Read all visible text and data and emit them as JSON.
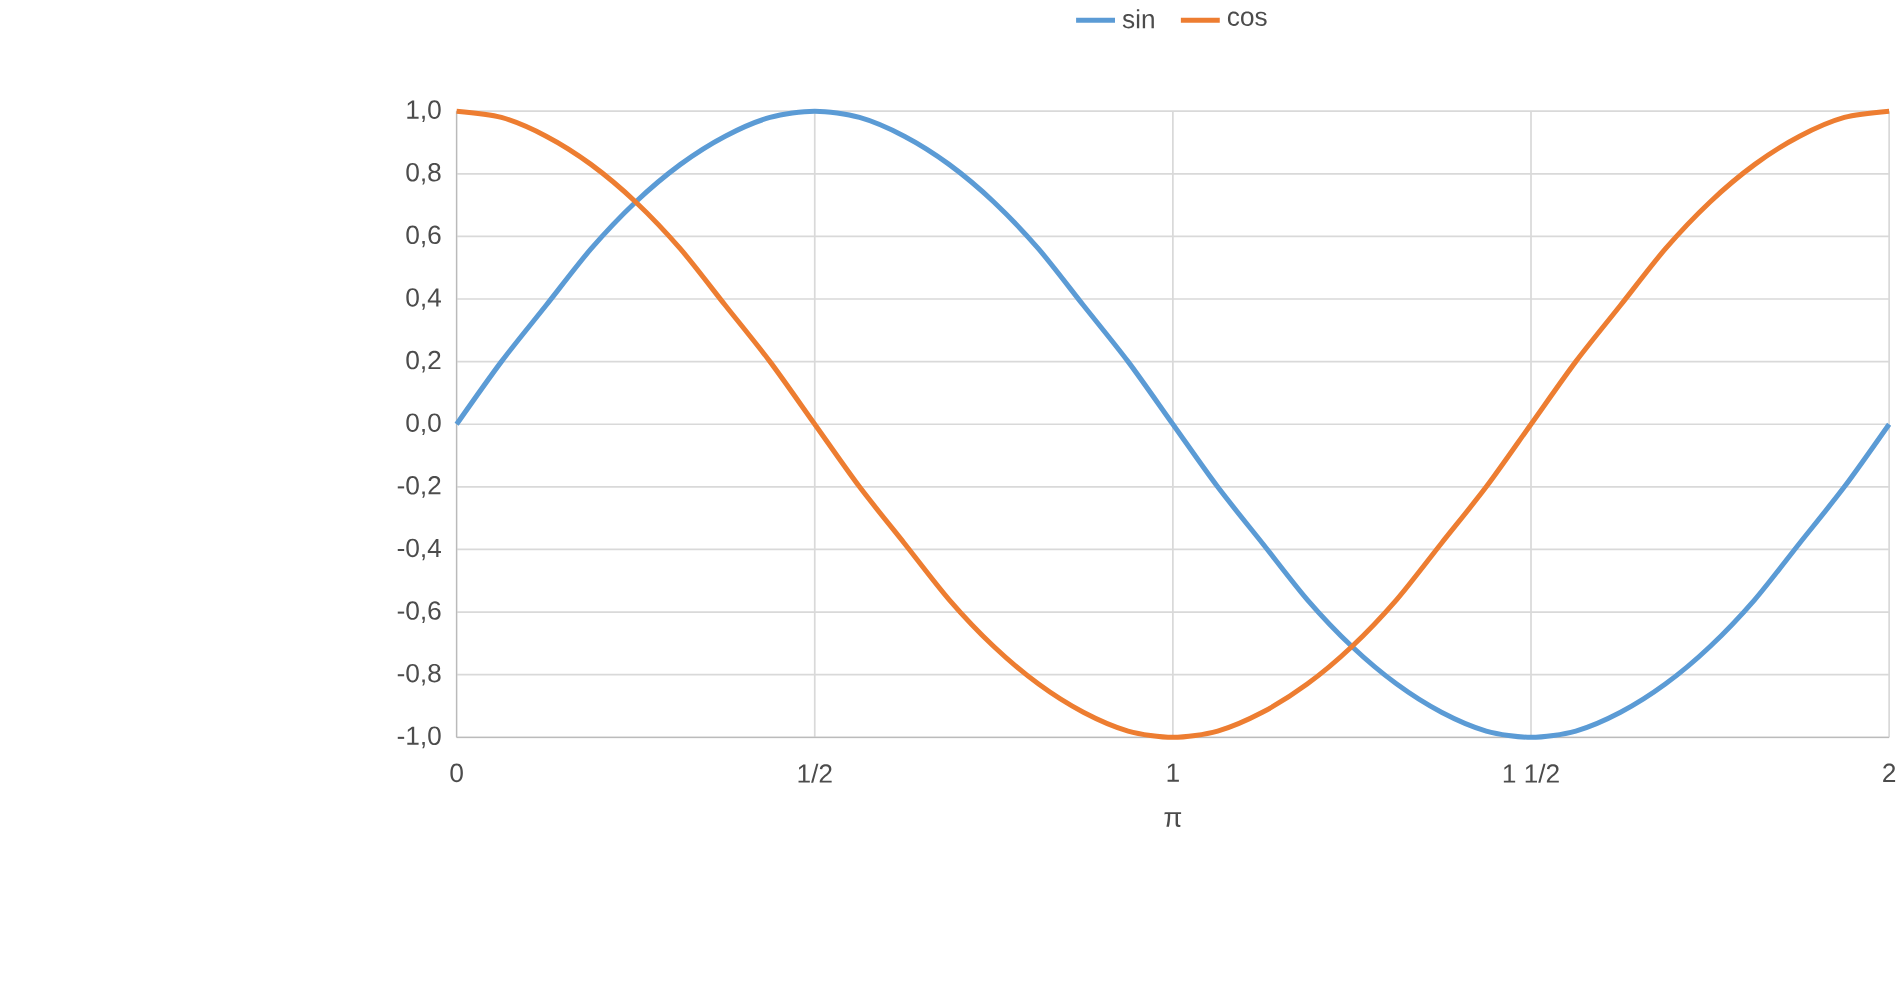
{
  "chart_data": {
    "type": "line",
    "xlabel": "π",
    "x": [
      0,
      0.0625,
      0.125,
      0.1875,
      0.25,
      0.3125,
      0.375,
      0.4375,
      0.5,
      0.5625,
      0.625,
      0.6875,
      0.75,
      0.8125,
      0.875,
      0.9375,
      1,
      1.0625,
      1.125,
      1.1875,
      1.25,
      1.3125,
      1.375,
      1.4375,
      1.5,
      1.5625,
      1.625,
      1.6875,
      1.75,
      1.8125,
      1.875,
      1.9375,
      2
    ],
    "series": [
      {
        "name": "sin",
        "color": "#5b9bd5",
        "values": [
          0,
          0.2,
          0.38,
          0.56,
          0.71,
          0.83,
          0.92,
          0.98,
          1,
          0.98,
          0.92,
          0.83,
          0.71,
          0.56,
          0.38,
          0.2,
          0,
          -0.2,
          -0.38,
          -0.56,
          -0.71,
          -0.83,
          -0.92,
          -0.98,
          -1,
          -0.98,
          -0.92,
          -0.83,
          -0.71,
          -0.56,
          -0.38,
          -0.2,
          0
        ]
      },
      {
        "name": "cos",
        "color": "#ed7d31",
        "values": [
          1,
          0.98,
          0.92,
          0.83,
          0.71,
          0.56,
          0.38,
          0.2,
          0,
          -0.2,
          -0.38,
          -0.56,
          -0.71,
          -0.83,
          -0.92,
          -0.98,
          -1,
          -0.98,
          -0.92,
          -0.83,
          -0.71,
          -0.56,
          -0.38,
          -0.2,
          0,
          0.2,
          0.38,
          0.56,
          0.71,
          0.83,
          0.92,
          0.98,
          1
        ]
      }
    ],
    "xlim": [
      0,
      2
    ],
    "xticks": [
      0,
      {
        "value": 0.5,
        "label": "1/2"
      },
      1,
      {
        "value": 1.5,
        "label": "1 1/2"
      },
      2
    ],
    "ylim": [
      -1,
      1
    ],
    "yticks": [
      {
        "value": -1,
        "label": "-1,0"
      },
      {
        "value": -0.8,
        "label": "-0,8"
      },
      {
        "value": -0.6,
        "label": "-0,6"
      },
      {
        "value": -0.4,
        "label": "-0,4"
      },
      {
        "value": -0.2,
        "label": "-0,2"
      },
      {
        "value": 0,
        "label": "0,0"
      },
      {
        "value": 0.2,
        "label": "0,2"
      },
      {
        "value": 0.4,
        "label": "0,4"
      },
      {
        "value": 0.6,
        "label": "0,6"
      },
      {
        "value": 0.8,
        "label": "0,8"
      },
      {
        "value": 1,
        "label": "1,0"
      }
    ],
    "grid": true,
    "legend": "top",
    "marker": "none",
    "line_style": "solid"
  }
}
